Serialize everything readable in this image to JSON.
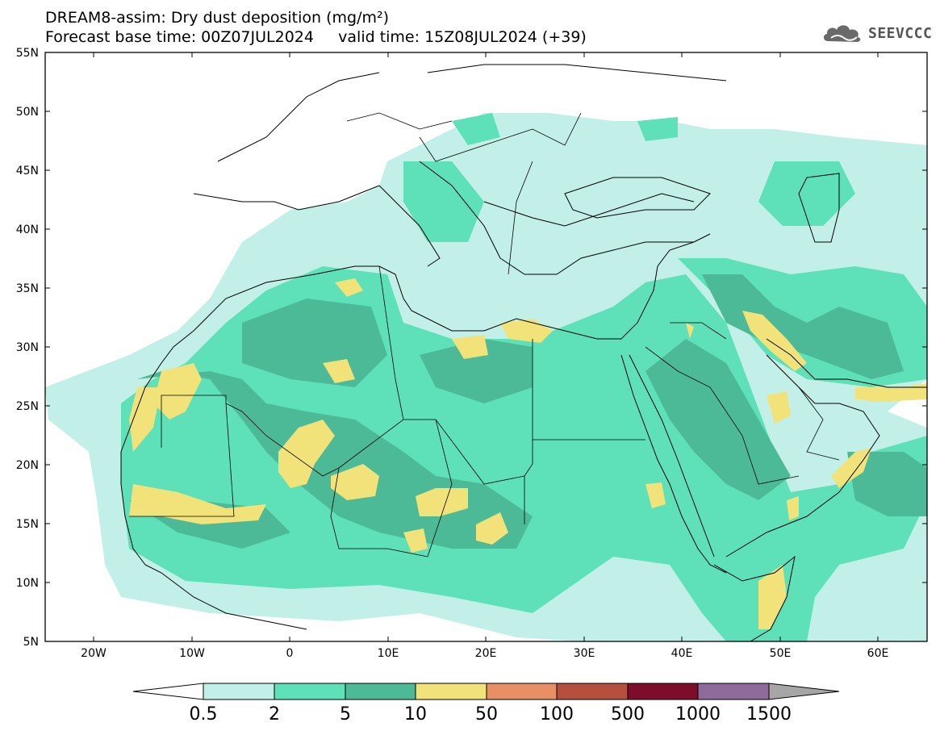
{
  "header": {
    "line1": "DREAM8-assim: Dry dust deposition (mg/m²)",
    "line2": "Forecast base time: 00Z07JUL2024     valid time: 15Z08JUL2024 (+39)"
  },
  "logo": {
    "text": "SEEVCCC",
    "icon": "cloud-icon"
  },
  "map": {
    "lat_labels": [
      "55N",
      "50N",
      "45N",
      "40N",
      "35N",
      "30N",
      "25N",
      "20N",
      "15N",
      "10N",
      "5N"
    ],
    "lon_labels": [
      "20W",
      "10W",
      "0",
      "10E",
      "20E",
      "30E",
      "40E",
      "50E",
      "60E"
    ],
    "colors": {
      "land": "#ffffff",
      "border": "#000000"
    }
  },
  "colorbar": {
    "levels": [
      "0.5",
      "2",
      "5",
      "10",
      "50",
      "100",
      "500",
      "1000",
      "1500"
    ],
    "colors": [
      "#c2f0e8",
      "#5ee0b8",
      "#4cba96",
      "#f2e27a",
      "#e88f66",
      "#b5503f",
      "#7d0d2a",
      "#8f6b9c"
    ],
    "under_color": "#ffffff",
    "over_color": "#a6a6a6"
  }
}
